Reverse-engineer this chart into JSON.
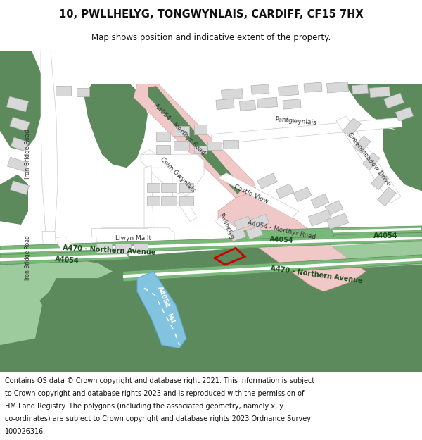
{
  "title": "10, PWLLHELYG, TONGWYNLAIS, CARDIFF, CF15 7HX",
  "subtitle": "Map shows position and indicative extent of the property.",
  "footer_lines": [
    "Contains OS data © Crown copyright and database right 2021. This information is subject",
    "to Crown copyright and database rights 2023 and is reproduced with the permission of",
    "HM Land Registry. The polygons (including the associated geometry, namely x, y",
    "co-ordinates) are subject to Crown copyright and database rights 2023 Ordnance Survey",
    "100026316."
  ],
  "bg_color": "#ffffff",
  "map_bg": "#f0f0f0",
  "green_dark": "#5c8a5c",
  "green_light": "#9ecb9e",
  "green_medium": "#7ab87a",
  "road_pink": "#f0c8c8",
  "water_blue": "#82c4e0",
  "building_color": "#d8d8d8",
  "building_outline": "#b0b0b0",
  "road_white": "#ffffff",
  "road_edge": "#cccccc",
  "property_color": "#cc0000",
  "text_dark": "#333333",
  "text_road": "#222222"
}
